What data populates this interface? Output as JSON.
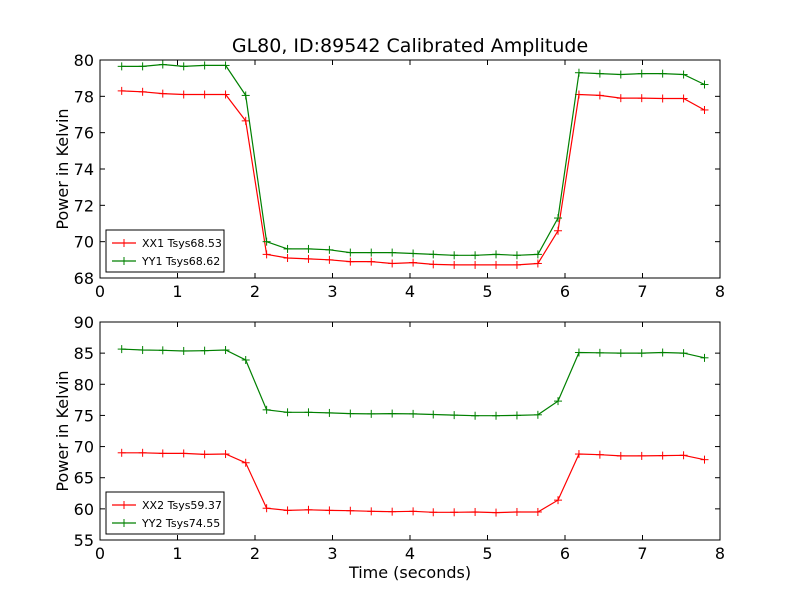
{
  "colors": {
    "red": "#ff0000",
    "green": "#008000"
  },
  "chart_data": [
    {
      "type": "line",
      "title": "GL80, ID:89542 Calibrated Amplitude",
      "xlabel": "",
      "ylabel": "Power in Kelvin",
      "xlim": [
        0,
        8
      ],
      "ylim": [
        68,
        80
      ],
      "xticks": [
        "0",
        "1",
        "2",
        "3",
        "4",
        "5",
        "6",
        "7",
        "8"
      ],
      "yticks": [
        "68",
        "70",
        "72",
        "74",
        "76",
        "78",
        "80"
      ],
      "legend_position": "lower-left",
      "marker": "+",
      "x": [
        0.28,
        0.55,
        0.81,
        1.08,
        1.35,
        1.62,
        1.88,
        2.15,
        2.42,
        2.69,
        2.96,
        3.23,
        3.5,
        3.77,
        4.04,
        4.3,
        4.57,
        4.84,
        5.11,
        5.38,
        5.65,
        5.91,
        6.18,
        6.45,
        6.72,
        6.99,
        7.26,
        7.53,
        7.8
      ],
      "series": [
        {
          "name": "XX1 Tsys68.53",
          "color": "#ff0000",
          "values": [
            78.3,
            78.25,
            78.15,
            78.1,
            78.1,
            78.1,
            76.65,
            69.3,
            69.1,
            69.05,
            69.0,
            68.9,
            68.9,
            68.8,
            68.85,
            68.75,
            68.72,
            68.72,
            68.72,
            68.72,
            68.8,
            70.6,
            78.1,
            78.05,
            77.9,
            77.9,
            77.88,
            77.88,
            77.25
          ]
        },
        {
          "name": "YY1 Tsys68.62",
          "color": "#008000",
          "values": [
            79.65,
            79.65,
            79.75,
            79.65,
            79.7,
            79.7,
            78.05,
            70.0,
            69.6,
            69.6,
            69.55,
            69.4,
            69.4,
            69.4,
            69.35,
            69.3,
            69.25,
            69.25,
            69.3,
            69.25,
            69.3,
            71.3,
            79.3,
            79.25,
            79.2,
            79.25,
            79.25,
            79.2,
            78.65
          ]
        }
      ]
    },
    {
      "type": "line",
      "title": "",
      "xlabel": "Time (seconds)",
      "ylabel": "Power in Kelvin",
      "xlim": [
        0,
        8
      ],
      "ylim": [
        55,
        90
      ],
      "xticks": [
        "0",
        "1",
        "2",
        "3",
        "4",
        "5",
        "6",
        "7",
        "8"
      ],
      "yticks": [
        "55",
        "60",
        "65",
        "70",
        "75",
        "80",
        "85",
        "90"
      ],
      "legend_position": "lower-left",
      "marker": "+",
      "x": [
        0.28,
        0.55,
        0.81,
        1.08,
        1.35,
        1.62,
        1.88,
        2.15,
        2.42,
        2.69,
        2.96,
        3.23,
        3.5,
        3.77,
        4.04,
        4.3,
        4.57,
        4.84,
        5.11,
        5.38,
        5.65,
        5.91,
        6.18,
        6.45,
        6.72,
        6.99,
        7.26,
        7.53,
        7.8
      ],
      "series": [
        {
          "name": "XX2 Tsys59.37",
          "color": "#ff0000",
          "values": [
            69.0,
            69.0,
            68.9,
            68.9,
            68.75,
            68.8,
            67.4,
            60.1,
            59.75,
            59.85,
            59.75,
            59.7,
            59.6,
            59.55,
            59.6,
            59.45,
            59.45,
            59.5,
            59.4,
            59.5,
            59.5,
            61.4,
            68.8,
            68.7,
            68.5,
            68.5,
            68.55,
            68.6,
            67.9
          ]
        },
        {
          "name": "YY2 Tsys74.55",
          "color": "#008000",
          "values": [
            85.65,
            85.5,
            85.45,
            85.35,
            85.4,
            85.5,
            83.9,
            75.9,
            75.5,
            75.5,
            75.4,
            75.3,
            75.25,
            75.3,
            75.25,
            75.15,
            75.05,
            74.95,
            74.95,
            75.0,
            75.1,
            77.3,
            85.1,
            85.05,
            85.0,
            85.0,
            85.1,
            85.0,
            84.25
          ]
        }
      ]
    }
  ]
}
